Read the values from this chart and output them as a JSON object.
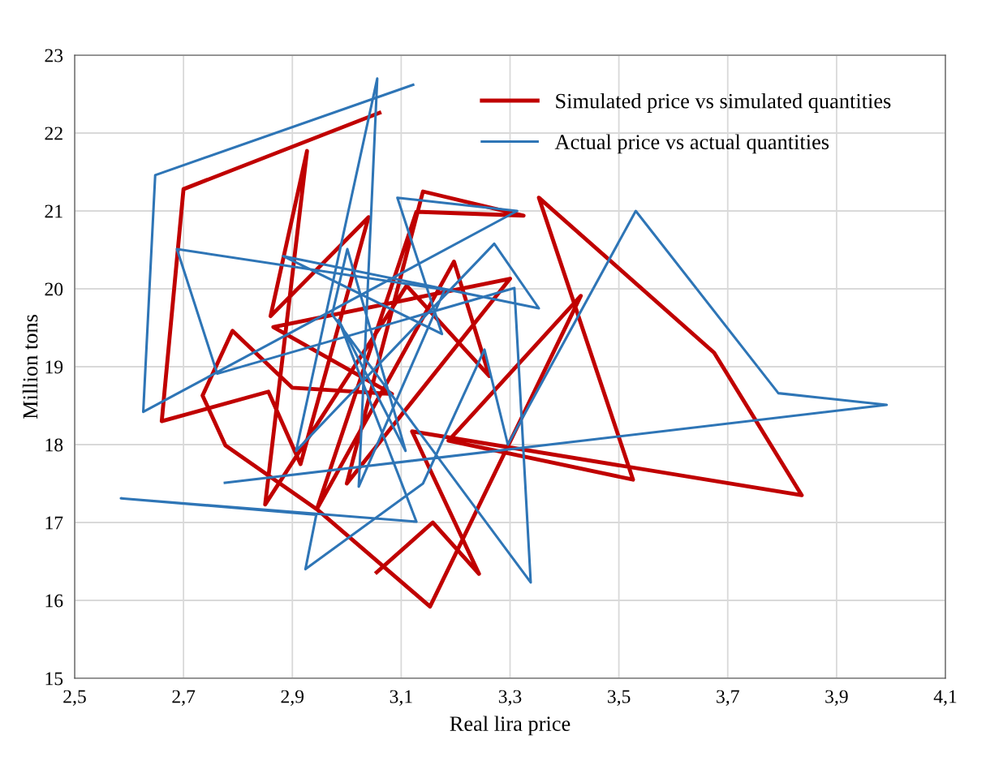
{
  "chart_data": {
    "type": "line",
    "xlabel": "Real lira price",
    "ylabel": "Million tons",
    "xlim": [
      2.5,
      4.1
    ],
    "ylim": [
      15,
      23
    ],
    "xticks": [
      {
        "value": 2.5,
        "label": "2,5"
      },
      {
        "value": 2.7,
        "label": "2,7"
      },
      {
        "value": 2.9,
        "label": "2,9"
      },
      {
        "value": 3.1,
        "label": "3,1"
      },
      {
        "value": 3.3,
        "label": "3,3"
      },
      {
        "value": 3.5,
        "label": "3,5"
      },
      {
        "value": 3.7,
        "label": "3,7"
      },
      {
        "value": 3.9,
        "label": "3,9"
      },
      {
        "value": 4.1,
        "label": "4,1"
      }
    ],
    "yticks": [
      15,
      16,
      17,
      18,
      19,
      20,
      21,
      22,
      23
    ],
    "grid": true,
    "legend": "top right",
    "marker": "none",
    "line_style": "solid",
    "series": [
      {
        "name": "Simulated price vs simulated quantities",
        "color": "#c00000",
        "x": [
          3.06,
          2.7,
          2.66,
          2.856,
          2.915,
          3.04,
          2.86,
          2.927,
          2.85,
          3.11,
          3.262,
          3.197,
          2.945,
          3.128,
          3.325,
          3.14,
          3.0,
          3.3,
          2.865,
          3.083,
          2.9,
          2.79,
          2.735,
          2.777,
          2.945,
          3.153,
          3.43,
          3.187,
          3.526,
          3.353,
          3.675,
          3.836,
          3.12,
          3.243,
          3.158,
          3.055
        ],
        "values": [
          22.26,
          21.28,
          18.3,
          18.68,
          17.75,
          20.92,
          19.65,
          21.77,
          17.23,
          20.04,
          18.88,
          20.35,
          17.17,
          20.99,
          20.94,
          21.25,
          17.5,
          20.13,
          19.51,
          18.65,
          18.73,
          19.46,
          18.63,
          17.99,
          17.17,
          15.92,
          19.91,
          18.05,
          17.55,
          21.17,
          19.18,
          17.35,
          18.17,
          16.34,
          17.0,
          16.36
        ]
      },
      {
        "name": "Actual price vs actual quantities",
        "color": "#2e75b6",
        "x": [
          3.122,
          2.648,
          2.626,
          3.313,
          3.093,
          3.175,
          2.883,
          3.353,
          3.271,
          2.907,
          3.056,
          3.022,
          3.18,
          2.688,
          2.762,
          3.308,
          3.338,
          2.973,
          3.001,
          3.108,
          2.985,
          3.128,
          2.585,
          2.944,
          2.924,
          3.14,
          3.253,
          3.296,
          3.531,
          3.793,
          3.992,
          2.776
        ],
        "values": [
          22.62,
          21.46,
          18.42,
          21.0,
          21.17,
          19.42,
          20.42,
          19.75,
          20.58,
          17.92,
          22.7,
          17.46,
          19.99,
          20.51,
          18.91,
          20.01,
          16.23,
          19.67,
          20.51,
          17.92,
          19.6,
          17.01,
          17.31,
          17.1,
          16.4,
          17.5,
          19.22,
          18.0,
          21.0,
          18.66,
          18.51,
          17.51
        ]
      }
    ]
  }
}
